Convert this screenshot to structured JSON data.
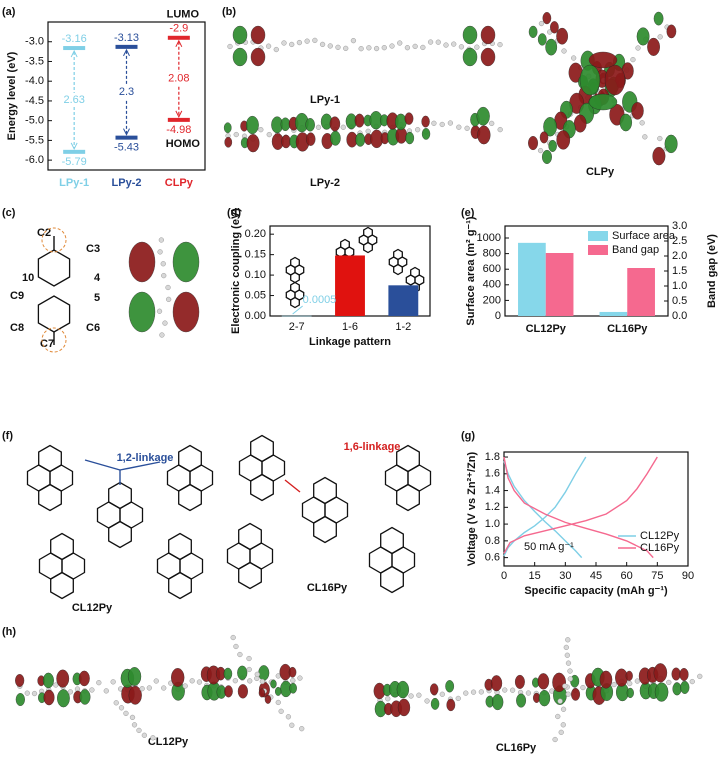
{
  "panel_labels": [
    "(a)",
    "(b)",
    "(c)",
    "(d)",
    "(e)",
    "(f)",
    "(g)",
    "(h)"
  ],
  "panel_b": {
    "labels": [
      "LPy-1",
      "LPy-2",
      "CLPy"
    ]
  },
  "panel_c": {
    "atom_labels": [
      "C2",
      "C3",
      "4",
      "5",
      "C6",
      "C7",
      "C8",
      "C9",
      "10"
    ]
  },
  "panel_f": {
    "linkages": [
      "1,2-linkage",
      "1,6-linkage"
    ],
    "names": [
      "CL12Py",
      "CL16Py"
    ]
  },
  "panel_h": {
    "names": [
      "CL12Py",
      "CL16Py"
    ]
  },
  "chart_data": [
    {
      "type": "energy_level",
      "ylabel": "Energy level (eV)",
      "categories": [
        "LPy-1",
        "LPy-2",
        "CLPy"
      ],
      "category_colors": [
        "#7fcfe6",
        "#2a4f9a",
        "#e0262c"
      ],
      "series": [
        {
          "name": "LUMO",
          "values": [
            -3.16,
            -3.13,
            -2.9
          ]
        },
        {
          "name": "HOMO",
          "values": [
            -5.79,
            -5.43,
            -4.98
          ]
        }
      ],
      "gaps": [
        2.63,
        2.3,
        2.08
      ],
      "ylim": [
        -6.25,
        -2.5
      ],
      "yticks": [
        {
          "value": -3,
          "label": "-3.0"
        },
        {
          "value": -3.5,
          "label": "-3.5"
        },
        {
          "value": -4,
          "label": "-4.0"
        },
        {
          "value": -4.5,
          "label": "-4.5"
        },
        {
          "value": -5,
          "label": "-5.0"
        },
        {
          "value": -5.5,
          "label": "-5.5"
        },
        {
          "value": -6,
          "label": "-6.0"
        }
      ]
    },
    {
      "type": "bar",
      "xlabel": "Linkage pattern",
      "ylabel": "Electronic coupling (eV)",
      "categories": [
        "2-7",
        "1-6",
        "1-2"
      ],
      "values": [
        0.0005,
        0.148,
        0.075
      ],
      "colors": [
        "#7fcfe6",
        "#e0120f",
        "#2a4f9a"
      ],
      "ylim": [
        0,
        0.22
      ],
      "yticks": [
        {
          "value": 0,
          "label": "0.00"
        },
        {
          "value": 0.05,
          "label": "0.05"
        },
        {
          "value": 0.1,
          "label": "0.10"
        },
        {
          "value": 0.15,
          "label": "0.15"
        },
        {
          "value": 0.2,
          "label": "0.20"
        }
      ]
    },
    {
      "type": "grouped_bar",
      "ylabel": "Surface area (m² g⁻¹)",
      "y2label": "Band gap (eV)",
      "categories": [
        "CL12Py",
        "CL16Py"
      ],
      "series": [
        {
          "name": "Surface area",
          "color": "#86d7ea",
          "values": [
            938,
            52
          ]
        },
        {
          "name": "Band gap",
          "color": "#f5698f",
          "axis": "y2",
          "values": [
            2.1,
            1.6
          ]
        }
      ],
      "ylim": [
        0,
        1154
      ],
      "yticks": [
        0,
        200,
        400,
        600,
        800,
        1000
      ],
      "y2lim": [
        0,
        3
      ],
      "y2ticks": [
        {
          "value": 0,
          "label": "0.0"
        },
        {
          "value": 0.5,
          "label": "0.5"
        },
        {
          "value": 1,
          "label": "1.0"
        },
        {
          "value": 1.5,
          "label": "1.5"
        },
        {
          "value": 2,
          "label": "2.0"
        },
        {
          "value": 2.5,
          "label": "2.5"
        },
        {
          "value": 3,
          "label": "3.0"
        }
      ],
      "legend": "upper right"
    },
    {
      "type": "line",
      "xlabel": "Specific capacity (mAh g⁻¹)",
      "ylabel": "Voltage (V vs Zn²⁺/Zn)",
      "annotation": "50 mA g⁻¹",
      "series": [
        {
          "name": "CL12Py",
          "color": "#7fcfe6",
          "x": [
            0,
            2,
            5,
            10,
            15,
            20,
            25,
            30,
            35,
            40,
            null,
            0,
            2,
            5,
            10,
            15,
            20,
            25,
            30,
            35,
            38
          ],
          "values": [
            0.62,
            0.72,
            0.8,
            0.9,
            0.98,
            1.08,
            1.2,
            1.38,
            1.6,
            1.8,
            null,
            1.75,
            1.6,
            1.45,
            1.28,
            1.15,
            1.03,
            0.92,
            0.8,
            0.68,
            0.6
          ]
        },
        {
          "name": "CL16Py",
          "color": "#f5698f",
          "x": [
            0,
            3,
            10,
            20,
            30,
            40,
            50,
            60,
            65,
            70,
            75,
            null,
            0,
            2,
            5,
            10,
            20,
            30,
            40,
            50,
            60,
            70,
            73
          ],
          "values": [
            0.65,
            0.78,
            0.86,
            0.92,
            0.98,
            1.04,
            1.12,
            1.28,
            1.42,
            1.6,
            1.8,
            null,
            1.8,
            1.55,
            1.4,
            1.25,
            1.12,
            1.02,
            0.95,
            0.88,
            0.8,
            0.68,
            0.6
          ]
        }
      ],
      "xlim": [
        0,
        90
      ],
      "xticks": [
        0,
        15,
        30,
        45,
        60,
        75,
        90
      ],
      "ylim": [
        0.5,
        1.86
      ],
      "yticks": [
        {
          "value": 0.6,
          "label": "0.6"
        },
        {
          "value": 0.8,
          "label": "0.8"
        },
        {
          "value": 1,
          "label": "1.0"
        },
        {
          "value": 1.2,
          "label": "1.2"
        },
        {
          "value": 1.4,
          "label": "1.4"
        },
        {
          "value": 1.6,
          "label": "1.6"
        },
        {
          "value": 1.8,
          "label": "1.8"
        }
      ],
      "legend": "lower right"
    }
  ]
}
